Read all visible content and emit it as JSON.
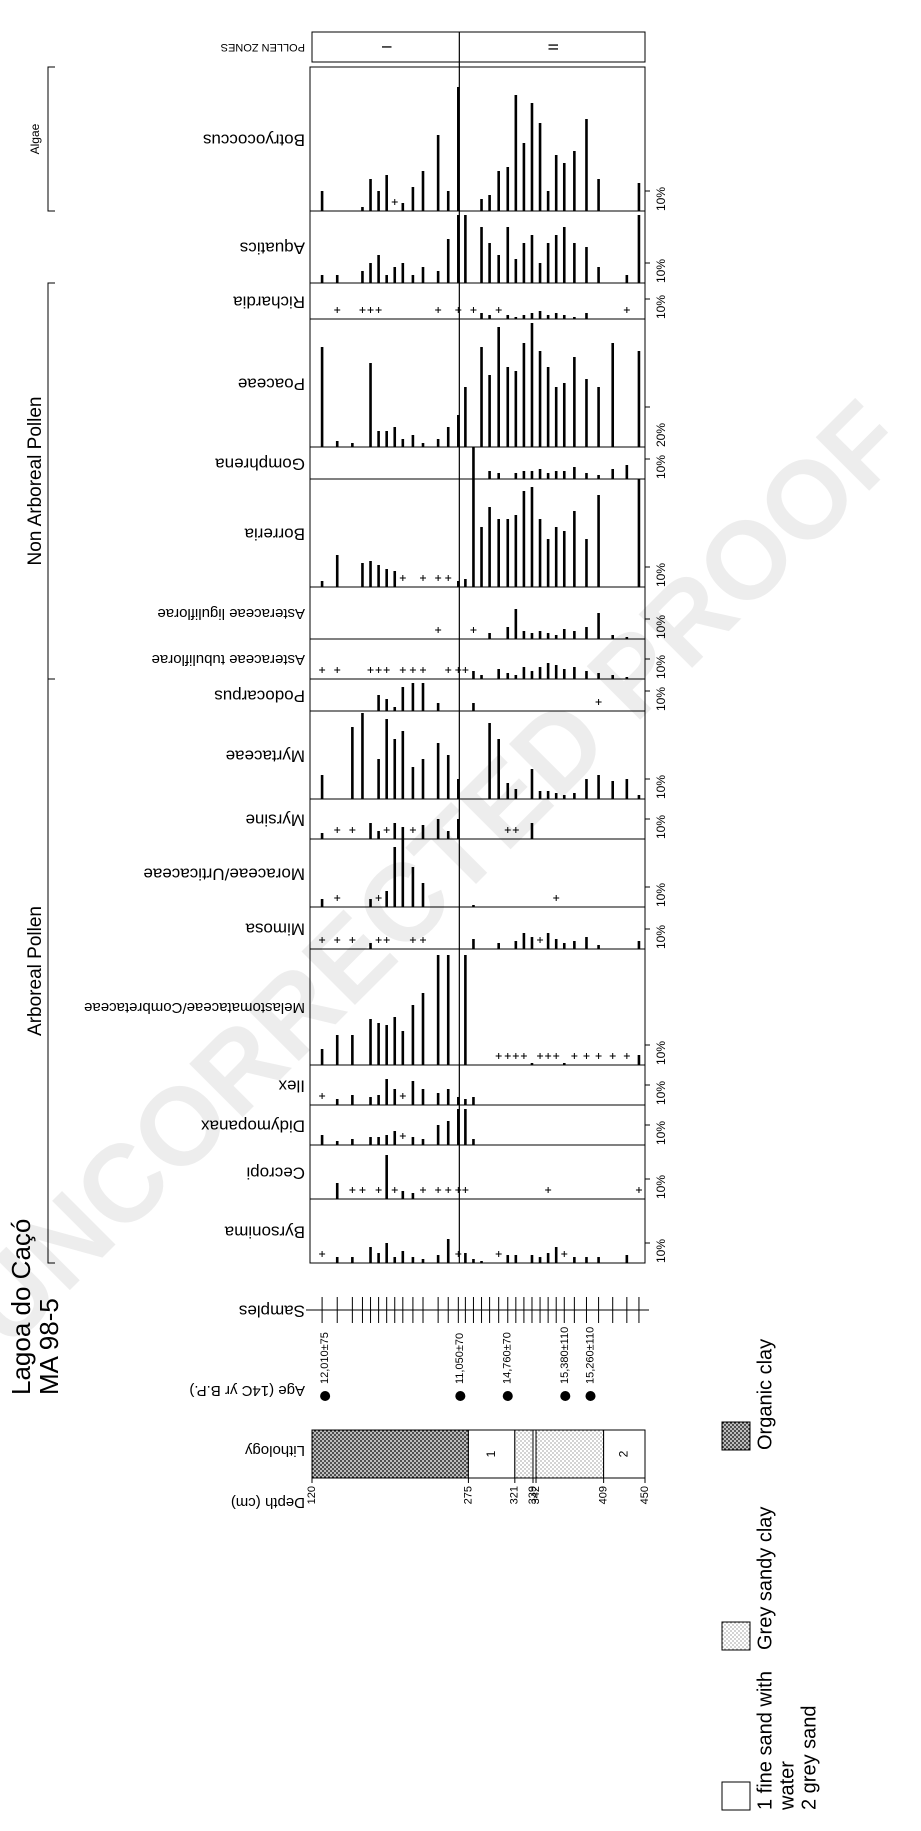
{
  "chart_data": {
    "type": "bar",
    "title": "Lagoa do Caçó",
    "subtitle": "MA 98-5",
    "watermark": "UNCORRECTED PROOF",
    "color": "#000000",
    "plus_below": 1,
    "depth_label": "Depth (cm)",
    "xlim": [
      120,
      450
    ],
    "xticks": [
      120,
      275,
      321,
      339,
      342,
      409,
      450
    ],
    "lithology_label": "Lithology",
    "lithology": [
      {
        "top": 120,
        "base": 275,
        "type": "organic"
      },
      {
        "top": 275,
        "base": 321,
        "type": "plain",
        "label": "1"
      },
      {
        "top": 321,
        "base": 339,
        "type": "sandy"
      },
      {
        "top": 339,
        "base": 342,
        "type": "plain"
      },
      {
        "top": 342,
        "base": 409,
        "type": "sandy"
      },
      {
        "top": 409,
        "base": 450,
        "type": "plain",
        "label": "2"
      }
    ],
    "age_label": "Age (14C yr B.P.)",
    "ages": {
      "depths": [
        133,
        267,
        314,
        371,
        396
      ],
      "labels": [
        "12,010±75",
        "11,050±70",
        "14,760±70",
        "15,380±110",
        "15,260±110"
      ]
    },
    "samples_label": "Samples",
    "zones": {
      "label": "POLLEN ZONES",
      "names": [
        "I",
        "II"
      ],
      "boundaries": [
        120,
        266,
        450
      ]
    },
    "x": [
      130,
      145,
      160,
      170,
      178,
      186,
      194,
      202,
      210,
      220,
      230,
      245,
      255,
      265,
      272,
      280,
      288,
      296,
      305,
      314,
      322,
      330,
      338,
      346,
      354,
      362,
      370,
      380,
      392,
      404,
      418,
      432,
      444
    ],
    "groups": [
      {
        "name": "Arboreal Pollen",
        "series_range": [
          0,
          9
        ]
      },
      {
        "name": "Non Arboreal Pollen",
        "series_range": [
          10,
          15
        ]
      },
      {
        "name": "Algae",
        "series_range": [
          17,
          17
        ]
      }
    ],
    "series": [
      {
        "name": "Byrsonima",
        "xlim": [
          0,
          32
        ],
        "xticks": [
          {
            "value": 10,
            "label": "10%"
          }
        ],
        "values": [
          0.5,
          3,
          3,
          null,
          8,
          5,
          10,
          3,
          6,
          3,
          2,
          4,
          12,
          0.5,
          5,
          2,
          1,
          null,
          0.5,
          4,
          4,
          null,
          4,
          3,
          5,
          8,
          0.5,
          3,
          3,
          3,
          null,
          4,
          null
        ]
      },
      {
        "name": "Cecropi",
        "xlim": [
          0,
          27
        ],
        "xticks": [
          {
            "value": 10,
            "label": "10%"
          }
        ],
        "values": [
          null,
          8,
          0.5,
          0.5,
          null,
          0.5,
          22,
          0.5,
          4,
          3,
          0.5,
          0.5,
          0.5,
          0.5,
          0.5,
          null,
          null,
          null,
          null,
          null,
          null,
          null,
          null,
          null,
          0.5,
          null,
          null,
          null,
          null,
          null,
          null,
          null,
          0.5
        ]
      },
      {
        "name": "Didymopanax",
        "xlim": [
          0,
          20
        ],
        "xticks": [
          {
            "value": 10,
            "label": "10%"
          }
        ],
        "values": [
          5,
          2,
          3,
          null,
          4,
          4,
          5,
          7,
          0.5,
          4,
          3,
          10,
          12,
          18,
          18,
          3,
          null,
          null,
          null,
          null,
          null,
          null,
          null,
          null,
          null,
          null,
          null,
          null,
          null,
          null,
          null,
          null,
          null
        ]
      },
      {
        "name": "Ilex",
        "xlim": [
          0,
          20
        ],
        "xticks": [
          {
            "value": 10,
            "label": "10%"
          }
        ],
        "values": [
          0.5,
          3,
          5,
          null,
          4,
          5,
          13,
          8,
          0.5,
          12,
          8,
          6,
          8,
          4,
          3,
          4,
          null,
          null,
          null,
          null,
          null,
          null,
          null,
          null,
          null,
          null,
          null,
          null,
          null,
          null,
          null,
          null,
          null
        ]
      },
      {
        "name": "Melastomataceae/Combretaceae",
        "xlim": [
          0,
          58
        ],
        "xticks": [
          {
            "value": 10,
            "label": "10%"
          }
        ],
        "values": [
          8,
          15,
          15,
          null,
          23,
          21,
          20,
          24,
          17,
          30,
          36,
          55,
          55,
          null,
          55,
          null,
          null,
          null,
          0.5,
          0.5,
          0.5,
          0.5,
          1,
          0.5,
          0.5,
          0.5,
          1,
          0.5,
          0.5,
          0.5,
          0.5,
          0.5,
          5
        ]
      },
      {
        "name": "Mimosa",
        "xlim": [
          0,
          21
        ],
        "xticks": [
          {
            "value": 10,
            "label": "10%"
          }
        ],
        "values": [
          0.5,
          0.5,
          0.5,
          null,
          3,
          0.5,
          0.5,
          null,
          null,
          0.5,
          0.5,
          null,
          null,
          null,
          null,
          5,
          null,
          null,
          3,
          null,
          4,
          8,
          6,
          0.5,
          8,
          5,
          3,
          4,
          6,
          2,
          null,
          null,
          4
        ]
      },
      {
        "name": "Moraceae/Urticaceae",
        "xlim": [
          0,
          34
        ],
        "xticks": [
          {
            "value": 10,
            "label": "10%"
          }
        ],
        "values": [
          4,
          0.5,
          null,
          null,
          4,
          0.5,
          8,
          30,
          34,
          20,
          12,
          null,
          null,
          null,
          null,
          1,
          null,
          null,
          null,
          null,
          null,
          null,
          null,
          null,
          null,
          0.5,
          null,
          null,
          null,
          null,
          null,
          null,
          null
        ]
      },
      {
        "name": "Myrsine",
        "xlim": [
          0,
          20
        ],
        "xticks": [
          {
            "value": 10,
            "label": "10%"
          }
        ],
        "values": [
          3,
          0.5,
          0.5,
          null,
          8,
          4,
          0.5,
          8,
          6,
          0.5,
          7,
          10,
          4,
          10,
          null,
          null,
          null,
          null,
          null,
          0.5,
          0.5,
          null,
          8,
          null,
          null,
          null,
          null,
          null,
          null,
          null,
          null,
          null,
          null
        ]
      },
      {
        "name": "Myrtaceae",
        "xlim": [
          0,
          44
        ],
        "xticks": [
          {
            "value": 10,
            "label": "10%"
          }
        ],
        "values": [
          12,
          null,
          36,
          43,
          null,
          20,
          40,
          30,
          34,
          16,
          20,
          28,
          22,
          10,
          null,
          null,
          null,
          38,
          30,
          8,
          5,
          null,
          15,
          4,
          4,
          3,
          2,
          3,
          10,
          12,
          9,
          10,
          2
        ]
      },
      {
        "name": "Podocarpus",
        "xlim": [
          0,
          16
        ],
        "xticks": [
          {
            "value": 10,
            "label": "10%"
          }
        ],
        "values": [
          null,
          null,
          null,
          null,
          null,
          8,
          6,
          2,
          12,
          14,
          14,
          4,
          null,
          null,
          null,
          4,
          null,
          null,
          null,
          null,
          null,
          null,
          null,
          null,
          null,
          null,
          null,
          null,
          null,
          0.5,
          null,
          null,
          null
        ]
      },
      {
        "name": "Asteraceae tubuliflorae",
        "xlim": [
          0,
          20
        ],
        "xticks": [
          {
            "value": 10,
            "label": "10%"
          }
        ],
        "values": [
          0.5,
          0.5,
          null,
          null,
          0.5,
          0.5,
          0.5,
          null,
          0.5,
          0.5,
          0.5,
          null,
          0.5,
          0.5,
          0.5,
          4,
          2,
          null,
          5,
          3,
          2,
          6,
          4,
          6,
          8,
          7,
          5,
          6,
          4,
          3,
          2,
          1,
          null
        ]
      },
      {
        "name": "Asteraceae liguliflorae",
        "xlim": [
          0,
          26
        ],
        "xticks": [
          {
            "value": 10,
            "label": "10%"
          }
        ],
        "values": [
          null,
          null,
          null,
          null,
          null,
          null,
          null,
          null,
          null,
          null,
          null,
          0.5,
          null,
          null,
          null,
          0.5,
          null,
          3,
          null,
          6,
          15,
          4,
          3,
          4,
          3,
          2,
          5,
          4,
          6,
          13,
          2,
          1,
          null
        ]
      },
      {
        "name": "Borreria",
        "xlim": [
          0,
          54
        ],
        "xticks": [
          {
            "value": 10,
            "label": "10%"
          }
        ],
        "values": [
          3,
          16,
          null,
          12,
          13,
          11,
          9,
          8,
          0.5,
          null,
          0.5,
          0.5,
          0.5,
          3,
          4,
          54,
          30,
          40,
          34,
          34,
          36,
          48,
          50,
          34,
          24,
          30,
          28,
          38,
          24,
          46,
          null,
          null,
          54
        ]
      },
      {
        "name": "Gomphrena",
        "xlim": [
          0,
          16
        ],
        "xticks": [
          {
            "value": 10,
            "label": "10%"
          }
        ],
        "values": [
          null,
          null,
          null,
          null,
          null,
          null,
          null,
          null,
          null,
          null,
          null,
          null,
          null,
          null,
          null,
          16,
          null,
          4,
          3,
          null,
          3,
          4,
          4,
          5,
          3,
          4,
          4,
          6,
          3,
          2,
          5,
          7,
          null
        ]
      },
      {
        "name": "Poaceae",
        "xlim": [
          0,
          64
        ],
        "xticks": [
          {
            "value": 20,
            "label": "20%"
          }
        ],
        "values": [
          50,
          3,
          2,
          null,
          42,
          8,
          8,
          10,
          4,
          6,
          2,
          4,
          10,
          16,
          30,
          null,
          50,
          36,
          60,
          40,
          38,
          52,
          62,
          48,
          40,
          30,
          32,
          45,
          34,
          30,
          52,
          null,
          48
        ]
      },
      {
        "name": "Richardia",
        "xlim": [
          0,
          18
        ],
        "xticks": [
          {
            "value": 10,
            "label": "10%"
          }
        ],
        "values": [
          null,
          0.5,
          null,
          0.5,
          0.5,
          0.5,
          null,
          null,
          null,
          null,
          null,
          0.5,
          null,
          0.5,
          null,
          0.5,
          3,
          2,
          0.5,
          2,
          1,
          2,
          3,
          4,
          2,
          3,
          2,
          1,
          3,
          null,
          null,
          0.5,
          null
        ]
      },
      {
        "name": "Aquatics",
        "xlim": [
          0,
          36
        ],
        "xticks": [
          {
            "value": 10,
            "label": "10%"
          }
        ],
        "values": [
          4,
          4,
          null,
          6,
          10,
          14,
          4,
          8,
          10,
          4,
          8,
          6,
          22,
          34,
          34,
          null,
          28,
          20,
          14,
          28,
          12,
          20,
          24,
          10,
          20,
          24,
          28,
          20,
          18,
          8,
          null,
          4,
          34
        ]
      },
      {
        "name": "Botryococcus",
        "xlim": [
          0,
          72
        ],
        "xticks": [
          {
            "value": 10,
            "label": "10%"
          }
        ],
        "values": [
          10,
          null,
          null,
          2,
          16,
          10,
          18,
          0.5,
          4,
          12,
          20,
          38,
          10,
          62,
          null,
          null,
          6,
          8,
          20,
          22,
          58,
          34,
          54,
          44,
          10,
          28,
          24,
          30,
          46,
          16,
          null,
          null,
          14
        ]
      }
    ],
    "legend": [
      {
        "type": "plain",
        "lines": [
          "1 fine sand with",
          "water",
          "2 grey sand"
        ]
      },
      {
        "type": "sandy",
        "lines": [
          "Grey sandy clay"
        ]
      },
      {
        "type": "organic",
        "lines": [
          "Organic clay"
        ]
      }
    ]
  }
}
